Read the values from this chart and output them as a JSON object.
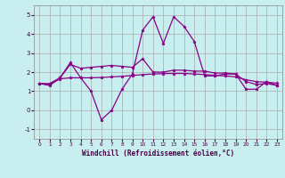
{
  "xlabel": "Windchill (Refroidissement éolien,°C)",
  "background_color": "#c8eef0",
  "grid_color": "#aaaaaa",
  "line_color": "#880088",
  "xlim": [
    -0.5,
    23.5
  ],
  "ylim": [
    -1.5,
    5.5
  ],
  "yticks": [
    -1,
    0,
    1,
    2,
    3,
    4,
    5
  ],
  "xticks": [
    0,
    1,
    2,
    3,
    4,
    5,
    6,
    7,
    8,
    9,
    10,
    11,
    12,
    13,
    14,
    15,
    16,
    17,
    18,
    19,
    20,
    21,
    22,
    23
  ],
  "series": [
    [
      1.4,
      1.3,
      1.7,
      2.5,
      1.7,
      1.0,
      -0.5,
      0.0,
      1.1,
      1.9,
      4.2,
      4.9,
      3.5,
      4.9,
      4.4,
      3.6,
      1.8,
      1.8,
      1.9,
      1.9,
      1.1,
      1.1,
      1.5,
      1.3
    ],
    [
      1.4,
      1.35,
      1.65,
      1.7,
      1.7,
      1.7,
      1.72,
      1.75,
      1.78,
      1.82,
      1.87,
      1.9,
      1.92,
      1.93,
      1.93,
      1.9,
      1.87,
      1.83,
      1.8,
      1.75,
      1.6,
      1.5,
      1.47,
      1.42
    ],
    [
      1.4,
      1.4,
      1.7,
      2.4,
      2.2,
      2.25,
      2.3,
      2.35,
      2.3,
      2.25,
      2.7,
      2.0,
      2.0,
      2.1,
      2.1,
      2.05,
      2.05,
      1.95,
      1.95,
      1.9,
      1.5,
      1.35,
      1.4,
      1.3
    ]
  ]
}
